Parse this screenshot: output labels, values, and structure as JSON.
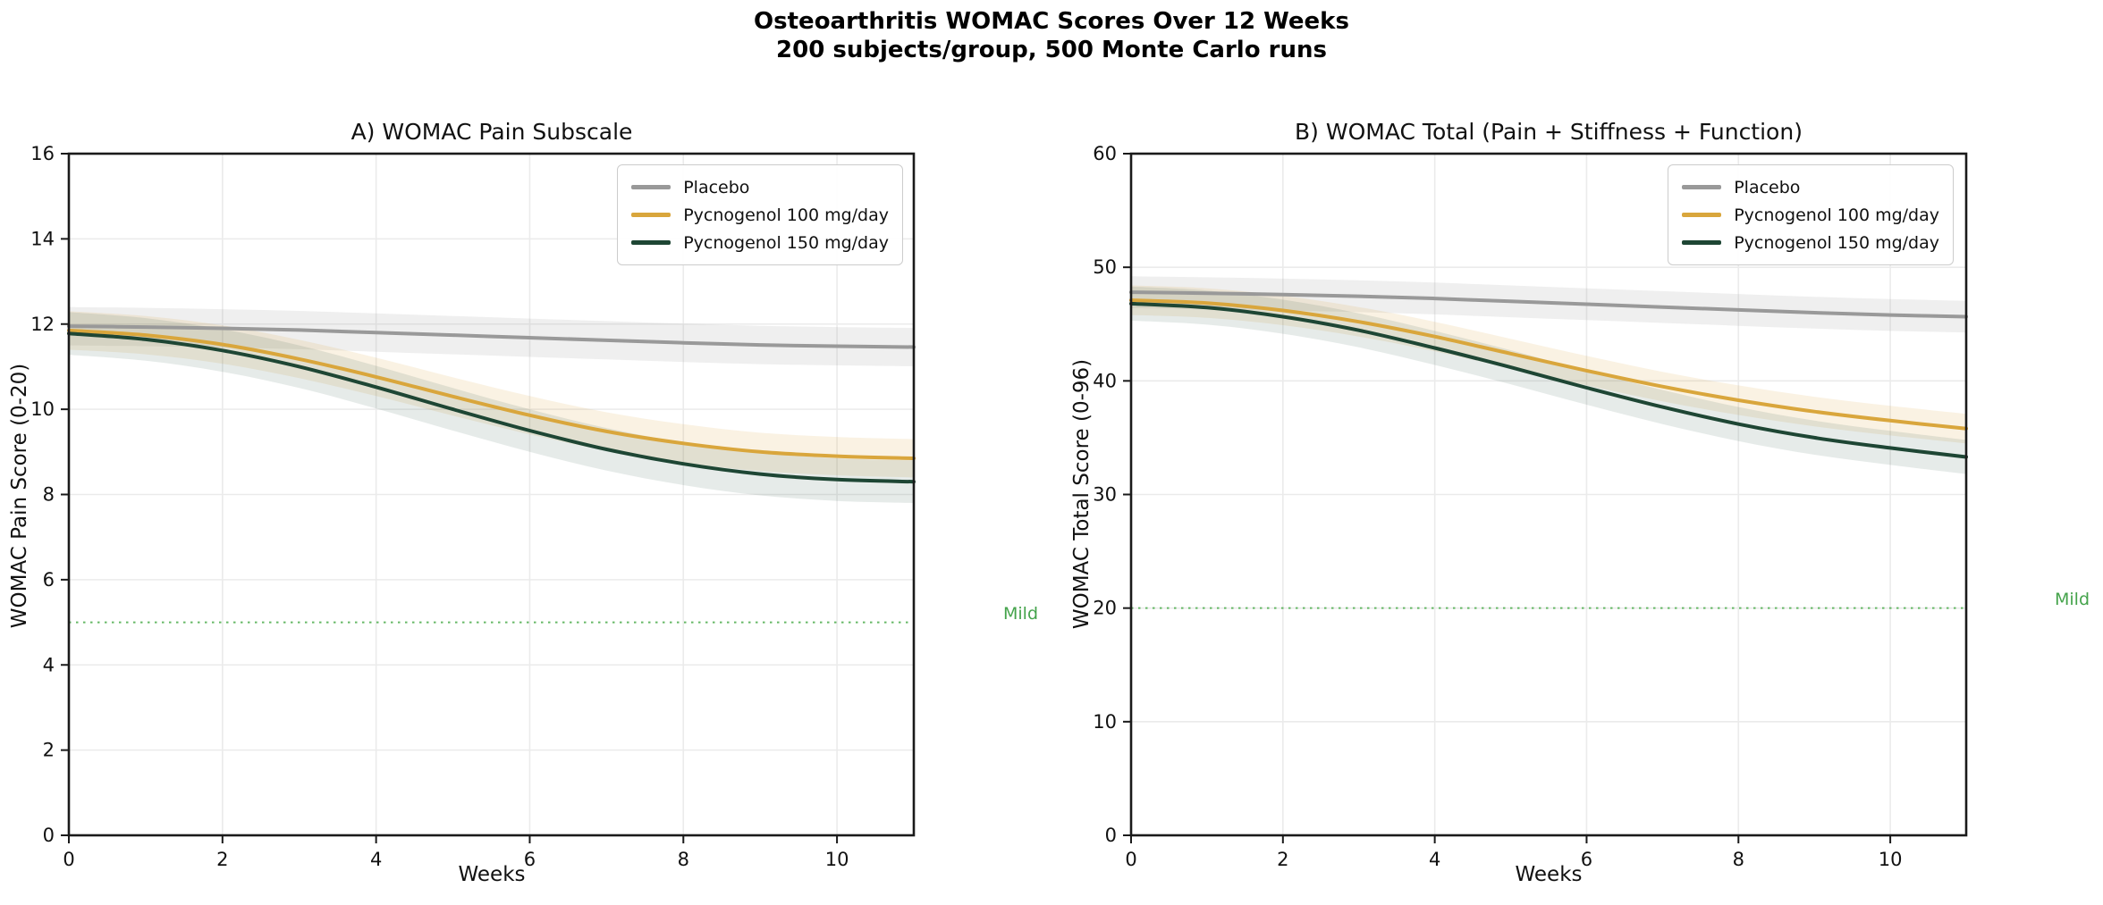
{
  "figure": {
    "title_line1": "Osteoarthritis WOMAC Scores Over 12 Weeks",
    "title_line2": "200 subjects/group, 500 Monte Carlo runs"
  },
  "colors": {
    "spine": "#1a1a1a",
    "grid": "#ebebeb",
    "tick_text": "#111111",
    "threshold_line": "#55b055",
    "threshold_text": "#44a34b"
  },
  "chart_data": [
    {
      "type": "line",
      "panel": "A",
      "title": "A) WOMAC Pain Subscale",
      "xlabel": "Weeks",
      "ylabel": "WOMAC Pain Score (0-20)",
      "xlim": [
        0,
        11
      ],
      "ylim": [
        0,
        16
      ],
      "xticks": [
        0,
        2,
        4,
        6,
        8,
        10
      ],
      "yticks": [
        0,
        2,
        4,
        6,
        8,
        10,
        12,
        14,
        16
      ],
      "grid": true,
      "legend_position": "upper right",
      "x": [
        0,
        1,
        2,
        3,
        4,
        5,
        6,
        7,
        8,
        9,
        10,
        11
      ],
      "series": [
        {
          "name": "Placebo",
          "color": "#999999",
          "band": 0.45,
          "band_opacity": 0.16,
          "values": [
            11.95,
            11.93,
            11.9,
            11.86,
            11.8,
            11.74,
            11.68,
            11.62,
            11.56,
            11.51,
            11.48,
            11.46
          ]
        },
        {
          "name": "Pycnogenol 100 mg/day",
          "color": "#D9A63C",
          "band": 0.45,
          "band_opacity": 0.14,
          "values": [
            11.85,
            11.74,
            11.52,
            11.18,
            10.76,
            10.3,
            9.86,
            9.48,
            9.2,
            9.0,
            8.9,
            8.85
          ]
        },
        {
          "name": "Pycnogenol 150 mg/day",
          "color": "#1E4634",
          "band": 0.5,
          "band_opacity": 0.11,
          "values": [
            11.78,
            11.64,
            11.38,
            11.0,
            10.52,
            10.0,
            9.5,
            9.06,
            8.72,
            8.48,
            8.35,
            8.3
          ]
        }
      ],
      "threshold": {
        "y": 5,
        "label": "Mild"
      }
    },
    {
      "type": "line",
      "panel": "B",
      "title": "B) WOMAC Total (Pain + Stiffness + Function)",
      "xlabel": "Weeks",
      "ylabel": "WOMAC Total Score (0-96)",
      "xlim": [
        0,
        11
      ],
      "ylim": [
        0,
        60
      ],
      "xticks": [
        0,
        2,
        4,
        6,
        8,
        10
      ],
      "yticks": [
        0,
        10,
        20,
        30,
        40,
        50,
        60
      ],
      "grid": true,
      "legend_position": "upper right",
      "x": [
        0,
        1,
        2,
        3,
        4,
        5,
        6,
        7,
        8,
        9,
        10,
        11
      ],
      "series": [
        {
          "name": "Placebo",
          "color": "#999999",
          "band": 1.4,
          "band_opacity": 0.16,
          "values": [
            47.8,
            47.72,
            47.6,
            47.45,
            47.25,
            47.0,
            46.75,
            46.5,
            46.25,
            46.0,
            45.8,
            45.65
          ]
        },
        {
          "name": "Pycnogenol 100 mg/day",
          "color": "#D9A63C",
          "band": 1.3,
          "band_opacity": 0.14,
          "values": [
            47.1,
            46.85,
            46.2,
            45.2,
            43.9,
            42.4,
            40.9,
            39.5,
            38.3,
            37.3,
            36.5,
            35.8
          ]
        },
        {
          "name": "Pycnogenol 150 mg/day",
          "color": "#1E4634",
          "band": 1.5,
          "band_opacity": 0.11,
          "values": [
            46.8,
            46.45,
            45.65,
            44.45,
            42.9,
            41.2,
            39.4,
            37.7,
            36.2,
            35.0,
            34.1,
            33.3
          ]
        }
      ],
      "threshold": {
        "y": 20,
        "label": "Mild"
      }
    }
  ]
}
